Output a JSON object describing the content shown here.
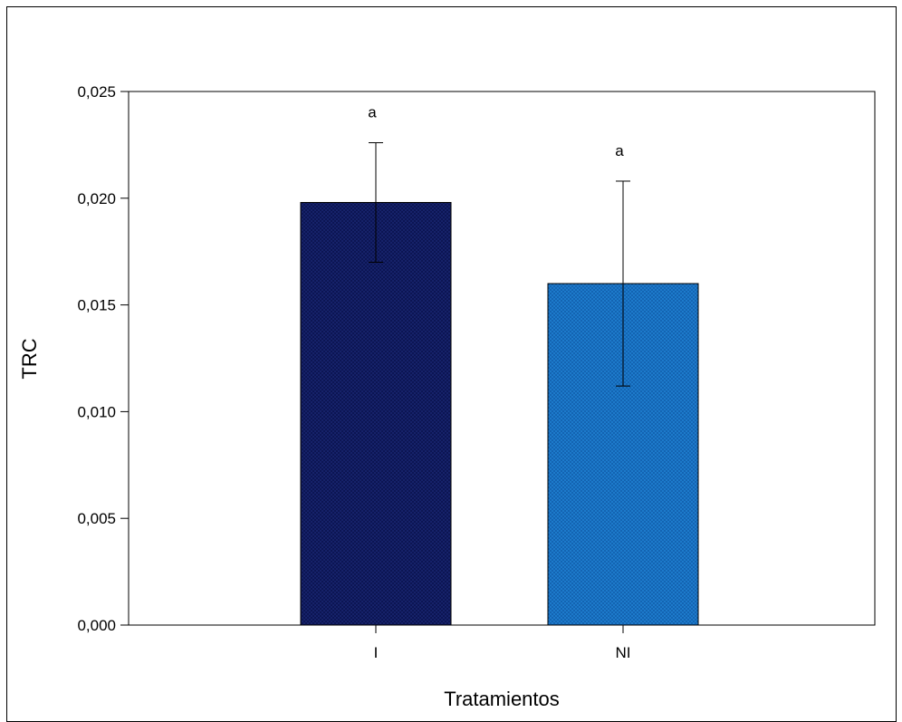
{
  "chart_data": {
    "type": "bar",
    "categories": [
      "I",
      "NI"
    ],
    "values": [
      0.0198,
      0.016
    ],
    "errors": [
      0.0028,
      0.0048
    ],
    "significance": [
      "a",
      "a"
    ],
    "colors": [
      "#0b1350",
      "#1f7fd0"
    ],
    "xlabel": "Tratamientos",
    "ylabel": "TRC",
    "ylim": [
      0,
      0.025
    ],
    "yticks": [
      "0,000",
      "0,005",
      "0,010",
      "0,015",
      "0,020",
      "0,025"
    ],
    "ytick_values": [
      0,
      0.005,
      0.01,
      0.015,
      0.02,
      0.025
    ],
    "grid": false,
    "legend": "none"
  }
}
